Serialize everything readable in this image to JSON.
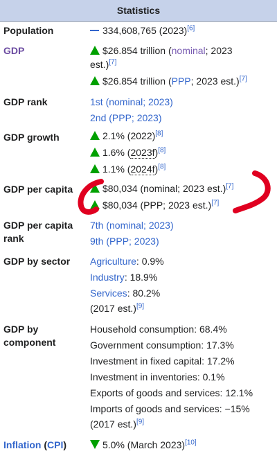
{
  "header": {
    "title": "Statistics"
  },
  "rows": {
    "population": {
      "label": "Population",
      "value": "334,608,765 (2023)",
      "ref": "[6]"
    },
    "gdp": {
      "label": "GDP",
      "line1": {
        "amount": "$26.854 trillion (",
        "link": "nominal",
        "rest": "; 2023",
        "rest2": "est.)",
        "ref": "[7]"
      },
      "line2": {
        "amount": "$26.854 trillion (",
        "link": "PPP",
        "rest": "; 2023 est.)",
        "ref": "[7]"
      }
    },
    "gdp_rank": {
      "label": "GDP rank",
      "line1": "1st (nominal; 2023)",
      "line2": "2nd (PPP; 2023)"
    },
    "gdp_growth": {
      "label": "GDP growth",
      "line1": {
        "value": "2.1% (2022)",
        "ref": "[8]"
      },
      "line2": {
        "value": "1.6% (",
        "est": "2023f",
        "close": ")",
        "ref": "[8]"
      },
      "line3": {
        "value": "1.1% (",
        "est": "2024f",
        "close": ")",
        "ref": "[8]"
      }
    },
    "gdp_per_capita": {
      "label": "GDP per capita",
      "line1": {
        "value": "$80,034 (nominal; 2023 est.)",
        "ref": "[7]"
      },
      "line2": {
        "value": "$80,034 (PPP; 2023 est.)",
        "ref": "[7]"
      }
    },
    "gdp_per_capita_rank": {
      "label1": "GDP per capita",
      "label2": "rank",
      "line1": "7th (nominal; 2023)",
      "line2": "9th (PPP; 2023)"
    },
    "gdp_by_sector": {
      "label": "GDP by sector",
      "items": [
        {
          "link": "Agriculture",
          "value": ": 0.9%"
        },
        {
          "link": "Industry",
          "value": ": 18.9%"
        },
        {
          "link": "Services",
          "value": ": 80.2%"
        }
      ],
      "note": "(2017 est.)",
      "ref": "[9]"
    },
    "gdp_by_component": {
      "label1": "GDP by",
      "label2": "component",
      "items": [
        "Household consumption: 68.4%",
        "Government consumption: 17.3%",
        "Investment in fixed capital: 17.2%",
        "Investment in inventories: 0.1%",
        "Exports of goods and services: 12.1%",
        "Imports of goods and services: −15%"
      ],
      "note": "(2017 est.)",
      "ref": "[9]"
    },
    "inflation": {
      "label": "Inflation",
      "paren_open": " (",
      "link": "CPI",
      "paren_close": ")",
      "value": "5.0% (March 2023)",
      "ref": "[10]"
    }
  },
  "colors": {
    "header_bg": "#c6d2ea",
    "link": "#3366cc",
    "visited": "#795cb2",
    "up_arrow": "#00a000",
    "annotation": "#e00020"
  }
}
